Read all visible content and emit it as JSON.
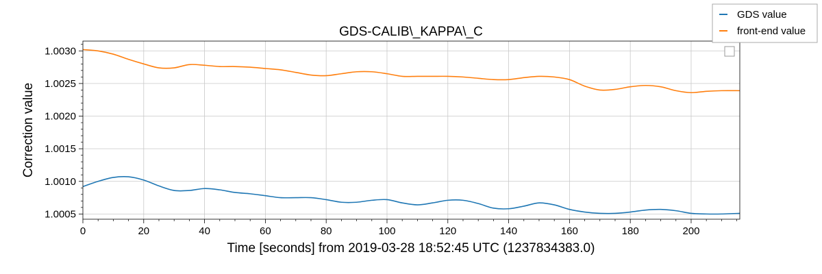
{
  "chart_data": {
    "type": "line",
    "title": "GDS-CALIB\\_KAPPA\\_C",
    "xlabel": "Time [seconds] from 2019-03-28 18:52:45 UTC (1237834383.0)",
    "ylabel": "Correction value",
    "xlim": [
      0,
      216
    ],
    "ylim": [
      1.00042,
      1.00315
    ],
    "x_ticks": [
      0,
      20,
      40,
      60,
      80,
      100,
      120,
      140,
      160,
      180,
      200
    ],
    "x_tick_labels": [
      "0",
      "20",
      "40",
      "60",
      "80",
      "100",
      "120",
      "140",
      "160",
      "180",
      "200"
    ],
    "y_ticks": [
      1.0005,
      1.001,
      1.0015,
      1.002,
      1.0025,
      1.003
    ],
    "y_tick_labels": [
      "1.0005",
      "1.0010",
      "1.0015",
      "1.0020",
      "1.0025",
      "1.0030"
    ],
    "grid": true,
    "legend_position": "top-right (outside plot)",
    "series": [
      {
        "name": "GDS value",
        "color": "#1f77b4",
        "x": [
          0,
          5,
          10,
          15,
          20,
          25,
          30,
          35,
          40,
          45,
          50,
          55,
          60,
          65,
          70,
          75,
          80,
          85,
          90,
          95,
          100,
          105,
          110,
          115,
          120,
          125,
          130,
          135,
          140,
          145,
          150,
          155,
          160,
          165,
          170,
          175,
          180,
          185,
          190,
          195,
          200,
          205,
          210,
          216
        ],
        "y": [
          1.00092,
          1.001,
          1.00106,
          1.00107,
          1.00102,
          1.00093,
          1.00086,
          1.00086,
          1.00089,
          1.00087,
          1.00083,
          1.00081,
          1.00078,
          1.00075,
          1.00075,
          1.00075,
          1.00072,
          1.00068,
          1.00068,
          1.00071,
          1.00072,
          1.00067,
          1.00064,
          1.00067,
          1.00071,
          1.00071,
          1.00066,
          1.00059,
          1.00058,
          1.00062,
          1.00067,
          1.00064,
          1.00057,
          1.00053,
          1.00051,
          1.00051,
          1.00053,
          1.00056,
          1.00057,
          1.00055,
          1.00051,
          1.0005,
          1.0005,
          1.00051
        ]
      },
      {
        "name": "front-end value",
        "color": "#ff7f0e",
        "x": [
          0,
          5,
          10,
          15,
          20,
          25,
          30,
          35,
          40,
          45,
          50,
          55,
          60,
          65,
          70,
          75,
          80,
          85,
          90,
          95,
          100,
          105,
          110,
          115,
          120,
          125,
          130,
          135,
          140,
          145,
          150,
          155,
          160,
          165,
          170,
          175,
          180,
          185,
          190,
          195,
          200,
          205,
          210,
          216
        ],
        "y": [
          1.00302,
          1.003,
          1.00295,
          1.00287,
          1.0028,
          1.00274,
          1.00274,
          1.00279,
          1.00278,
          1.00276,
          1.00276,
          1.00275,
          1.00273,
          1.00271,
          1.00267,
          1.00263,
          1.00262,
          1.00265,
          1.00268,
          1.00268,
          1.00265,
          1.00261,
          1.00261,
          1.00261,
          1.00261,
          1.0026,
          1.00258,
          1.00256,
          1.00256,
          1.00259,
          1.00261,
          1.0026,
          1.00256,
          1.00246,
          1.0024,
          1.00241,
          1.00245,
          1.00247,
          1.00245,
          1.00239,
          1.00236,
          1.00238,
          1.00239,
          1.00239
        ]
      }
    ]
  }
}
